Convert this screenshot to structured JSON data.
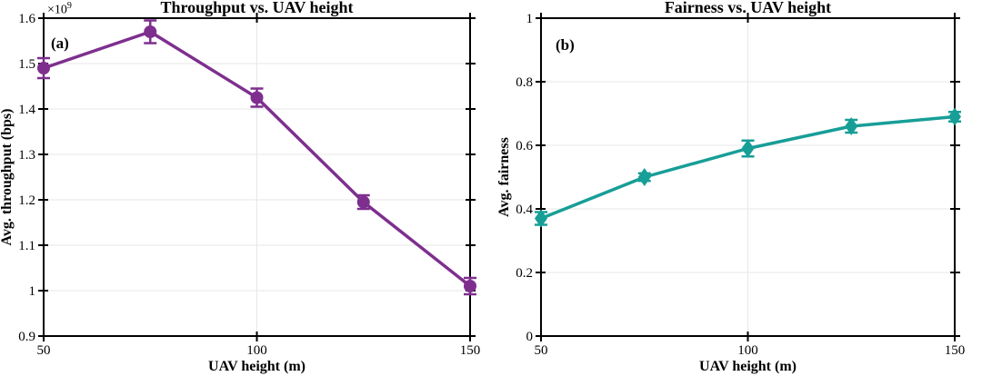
{
  "figure": {
    "background": "#ffffff",
    "axis_color": "#000000",
    "grid_color": "#e7e7e7",
    "text_color": "#000000"
  },
  "chart_data": [
    {
      "id": "throughput-vs-uav-height",
      "type": "line",
      "panel_label": "(a)",
      "title": "Throughput vs. UAV height",
      "xlabel": "UAV height (m)",
      "ylabel": "Avg. throughput (bps)",
      "y_exponent": {
        "base": "×10",
        "exp": "9"
      },
      "series_color": "#7E2F8E",
      "marker": "circle",
      "grid": true,
      "legend": "none",
      "x": [
        50,
        75,
        100,
        125,
        150
      ],
      "y": [
        1.49,
        1.57,
        1.425,
        1.195,
        1.01
      ],
      "yerr": [
        0.022,
        0.025,
        0.02,
        0.015,
        0.018
      ],
      "xlim": [
        50,
        150
      ],
      "ylim": [
        0.9,
        1.6
      ],
      "xticks": {
        "values": [
          50,
          100,
          150
        ],
        "labels": [
          "50",
          "100",
          "150"
        ]
      },
      "yticks": {
        "values": [
          0.9,
          1.0,
          1.1,
          1.2,
          1.3,
          1.4,
          1.5,
          1.6
        ],
        "labels": [
          "0.9",
          "1",
          "1.1",
          "1.2",
          "1.3",
          "1.4",
          "1.5",
          "1.6"
        ]
      }
    },
    {
      "id": "fairness-vs-uav-height",
      "type": "line",
      "panel_label": "(b)",
      "title": "Fairness vs. UAV height",
      "xlabel": "UAV height (m)",
      "ylabel": "Avg. fairness",
      "series_color": "#179E97",
      "marker": "diamond",
      "grid": true,
      "legend": "none",
      "x": [
        50,
        75,
        100,
        125,
        150
      ],
      "y": [
        0.37,
        0.5,
        0.59,
        0.66,
        0.69
      ],
      "yerr": [
        0.02,
        0.012,
        0.025,
        0.02,
        0.015
      ],
      "xlim": [
        50,
        150
      ],
      "ylim": [
        0,
        1
      ],
      "xticks": {
        "values": [
          50,
          100,
          150
        ],
        "labels": [
          "50",
          "100",
          "150"
        ]
      },
      "yticks": {
        "values": [
          0,
          0.2,
          0.4,
          0.6,
          0.8,
          1
        ],
        "labels": [
          "0",
          "0.2",
          "0.4",
          "0.6",
          "0.8",
          "1"
        ]
      }
    }
  ]
}
